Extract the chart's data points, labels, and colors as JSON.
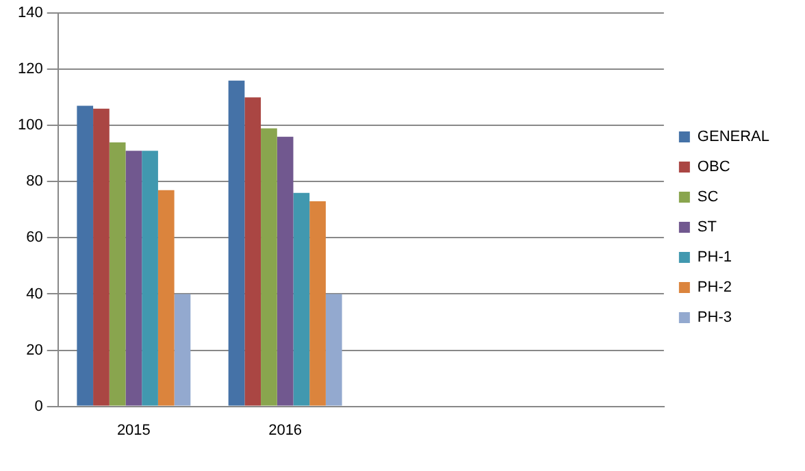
{
  "chart_data": {
    "type": "bar",
    "categories": [
      "2015",
      "2016",
      null,
      null
    ],
    "series": [
      {
        "name": "GENERAL",
        "color": "#4572a7",
        "values": [
          107,
          116,
          null,
          null
        ]
      },
      {
        "name": "OBC",
        "color": "#aa4643",
        "values": [
          106,
          110,
          null,
          null
        ]
      },
      {
        "name": "SC",
        "color": "#89a54e",
        "values": [
          94,
          99,
          null,
          null
        ]
      },
      {
        "name": "ST",
        "color": "#71588f",
        "values": [
          91,
          96,
          null,
          null
        ]
      },
      {
        "name": "PH-1",
        "color": "#4198af",
        "values": [
          91,
          76,
          null,
          null
        ]
      },
      {
        "name": "PH-2",
        "color": "#db843d",
        "values": [
          77,
          73,
          null,
          null
        ]
      },
      {
        "name": "PH-3",
        "color": "#93a9cf",
        "values": [
          40,
          40,
          null,
          null
        ]
      }
    ],
    "ylim": [
      0,
      140
    ],
    "yticks": [
      0,
      20,
      40,
      60,
      80,
      100,
      120,
      140
    ],
    "grid": "y",
    "legend": "right"
  }
}
